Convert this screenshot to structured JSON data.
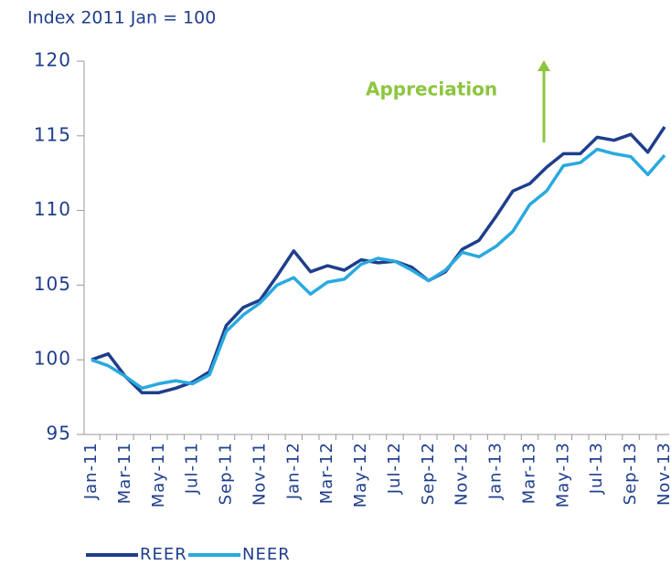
{
  "chart_data": {
    "type": "line",
    "y_axis_label": "Index 2011 Jan = 100",
    "annotations": [
      "Appreciation"
    ],
    "categories": [
      "Jan-11",
      null,
      "Mar-11",
      null,
      "May-11",
      null,
      "Jul-11",
      null,
      "Sep-11",
      null,
      "Nov-11",
      null,
      "Jan-12",
      null,
      "Mar-12",
      null,
      "May-12",
      null,
      "Jul-12",
      null,
      "Sep-12",
      null,
      "Nov-12",
      null,
      "Jan-13",
      null,
      "Mar-13",
      null,
      "May-13",
      null,
      "Jul-13",
      null,
      "Sep-13",
      null,
      "Nov-13"
    ],
    "series": [
      {
        "name": "REER",
        "color": "#1f3e8c",
        "values": [
          100,
          100.4,
          98.9,
          97.8,
          97.8,
          98.1,
          98.5,
          99.2,
          102.3,
          103.5,
          104.0,
          105.6,
          107.3,
          105.9,
          106.3,
          106.0,
          106.7,
          106.5,
          106.6,
          106.2,
          105.3,
          105.9,
          107.4,
          108.0,
          109.6,
          111.3,
          111.8,
          112.9,
          113.8,
          113.8,
          114.9,
          114.7,
          115.1,
          113.9,
          115.6
        ]
      },
      {
        "name": "NEER",
        "color": "#29a9e0",
        "values": [
          100,
          99.6,
          98.9,
          98.1,
          98.4,
          98.6,
          98.4,
          99.0,
          101.9,
          103.0,
          103.8,
          105.0,
          105.5,
          104.4,
          105.2,
          105.4,
          106.4,
          106.8,
          106.6,
          106.0,
          105.3,
          106.0,
          107.2,
          106.9,
          107.6,
          108.6,
          110.4,
          111.3,
          113.0,
          113.2,
          114.1,
          113.8,
          113.6,
          112.4,
          113.7
        ]
      }
    ],
    "ylim": [
      95,
      120
    ],
    "yticks": [
      95,
      100,
      105,
      110,
      115,
      120
    ],
    "grid": false,
    "legend": "bottom"
  }
}
